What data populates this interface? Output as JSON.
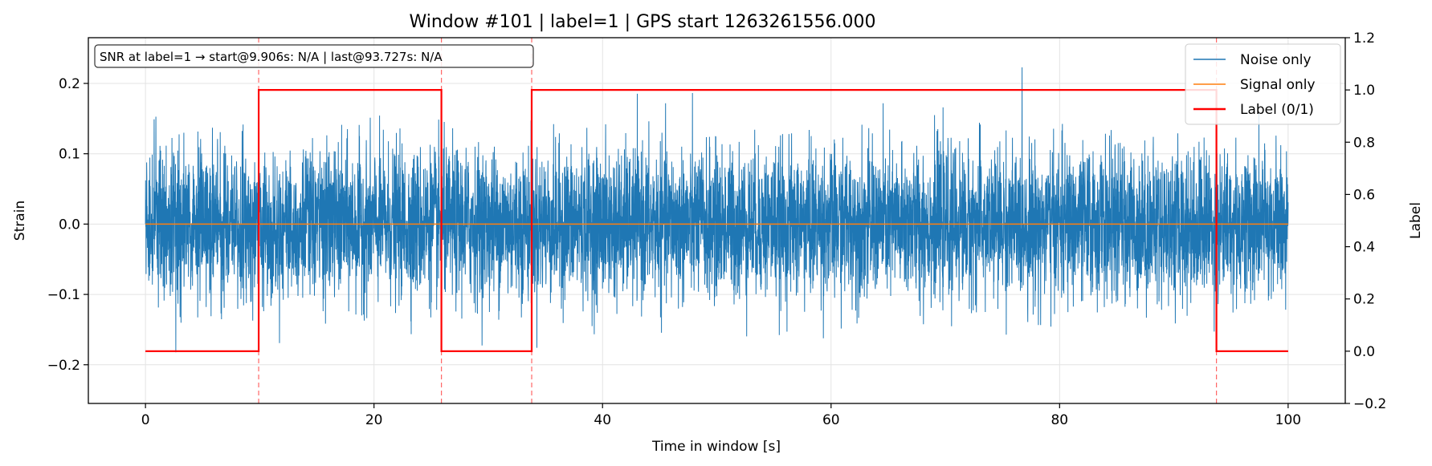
{
  "chart_data": {
    "type": "line",
    "title": "Window #101  |  label=1  |  GPS start 1263261556.000",
    "xlabel": "Time in window [s]",
    "ylabel": "Strain",
    "ylabel_right": "Label",
    "xlim": [
      -5,
      105
    ],
    "ylim": [
      -0.255,
      0.265
    ],
    "ylim_right": [
      -0.2,
      1.2
    ],
    "x_ticks": [
      0,
      20,
      40,
      60,
      80,
      100
    ],
    "x_tick_labels": [
      "0",
      "20",
      "40",
      "60",
      "80",
      "100"
    ],
    "y_ticks": [
      0.2,
      0.1,
      0.0,
      -0.1,
      -0.2
    ],
    "y_tick_labels": [
      "0.2",
      "0.1",
      "0.0",
      "−0.1",
      "−0.2"
    ],
    "y_right_ticks": [
      1.2,
      1.0,
      0.8,
      0.6,
      0.4,
      0.2,
      0.0,
      -0.2
    ],
    "y_right_tick_labels": [
      "1.2",
      "1.0",
      "0.8",
      "0.6",
      "0.4",
      "0.2",
      "0.0",
      "−0.2"
    ],
    "grid": true,
    "legend_position": "top-right",
    "annotation": "SNR at label=1 → start@9.906s: N/A | last@93.727s: N/A",
    "series": [
      {
        "name": "Noise only",
        "color": "#1f77b4",
        "description_stats": {
          "x_start": 0,
          "x_end": 100,
          "std": 0.052,
          "min": -0.23,
          "max": 0.225
        }
      },
      {
        "name": "Signal only",
        "color": "#ff7f0e",
        "x": [
          0,
          100
        ],
        "y": [
          0,
          0
        ]
      },
      {
        "name": "Label (0/1)",
        "color": "#ff0000",
        "axis": "right",
        "x": [
          0,
          9.906,
          9.906,
          25.9,
          25.9,
          33.8,
          33.8,
          93.727,
          93.727,
          100
        ],
        "y": [
          0,
          0,
          1,
          1,
          0,
          0,
          1,
          1,
          0,
          0
        ]
      }
    ],
    "vlines": [
      9.906,
      25.9,
      33.8,
      93.727
    ],
    "vline_color": "#ff0000"
  }
}
